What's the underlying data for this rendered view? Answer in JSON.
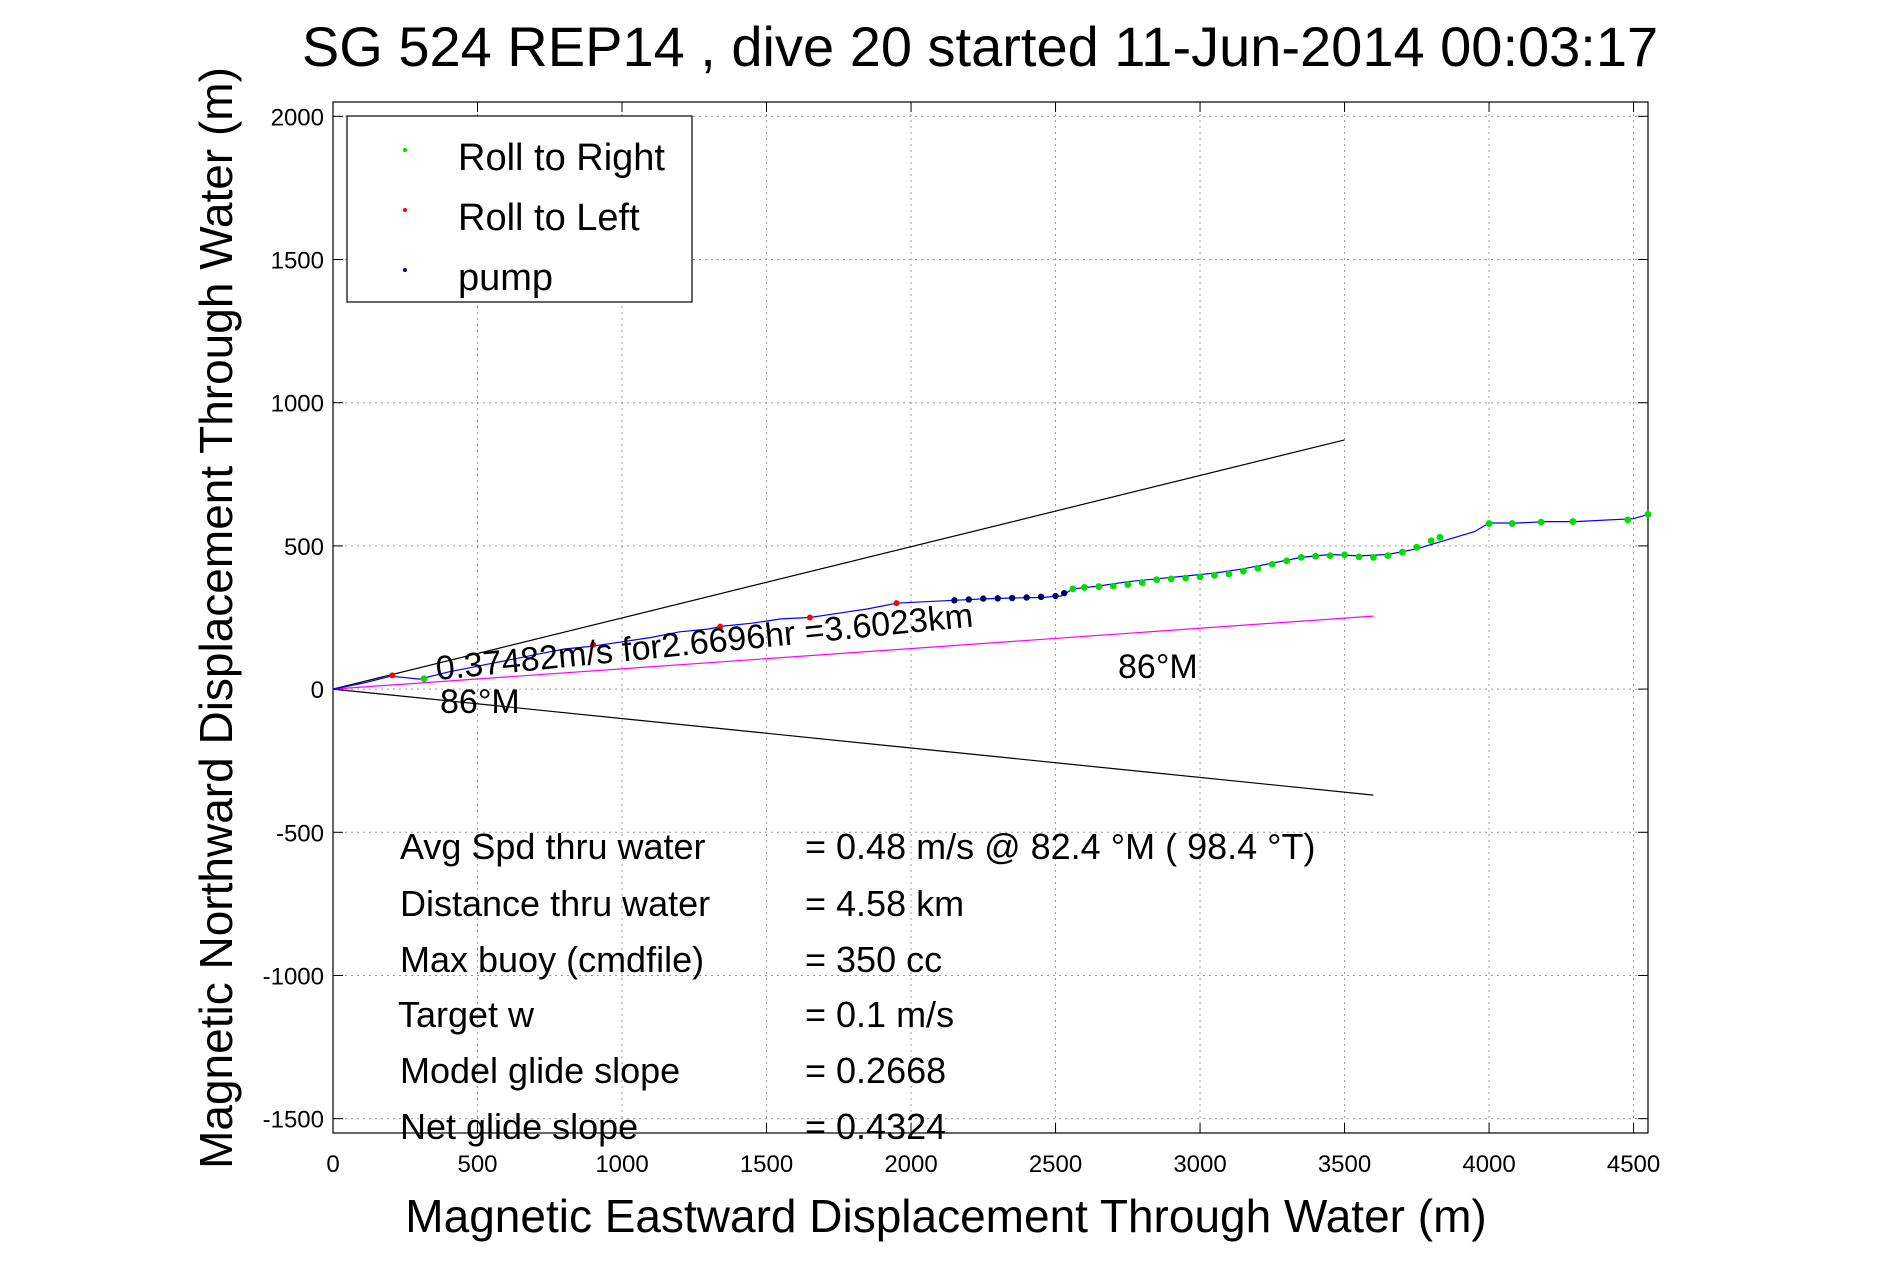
{
  "chart_data": {
    "type": "scatter",
    "title": "SG 524   REP14  , dive 20 started 11-Jun-2014 00:03:17",
    "xlabel": "Magnetic Eastward Displacement Through Water (m)",
    "ylabel": "Magnetic Northward Displacement Through Water (m)",
    "xlim": [
      0,
      4550
    ],
    "ylim": [
      -1550,
      2050
    ],
    "xticks": [
      0,
      500,
      1000,
      1500,
      2000,
      2500,
      3000,
      3500,
      4000,
      4500
    ],
    "yticks": [
      -1500,
      -1000,
      -500,
      0,
      500,
      1000,
      1500,
      2000
    ],
    "grid": true,
    "legend_position": "top-left",
    "legend": [
      "Roll to Right",
      "Roll to Left",
      "pump"
    ],
    "colors": {
      "track": "#0000ff",
      "roll_right": "#00dd00",
      "roll_left": "#ff0000",
      "pump": "#000066",
      "cone": "#000000",
      "heading": "#ff00ff"
    },
    "track": {
      "name": "track",
      "x": [
        0,
        100,
        200,
        300,
        400,
        500,
        600,
        700,
        800,
        900,
        1000,
        1100,
        1200,
        1300,
        1350,
        1450,
        1550,
        1650,
        1750,
        1850,
        1950,
        2050,
        2150,
        2250,
        2350,
        2450,
        2520,
        2560,
        2650,
        2750,
        2850,
        2950,
        3050,
        3150,
        3250,
        3350,
        3450,
        3550,
        3650,
        3750,
        3850,
        3950,
        4000,
        4100,
        4200,
        4300,
        4400,
        4500,
        4550
      ],
      "y": [
        0,
        20,
        45,
        35,
        60,
        80,
        100,
        120,
        140,
        150,
        165,
        180,
        200,
        210,
        220,
        230,
        245,
        250,
        265,
        280,
        300,
        305,
        310,
        315,
        318,
        320,
        325,
        350,
        360,
        375,
        385,
        395,
        405,
        420,
        440,
        460,
        470,
        465,
        470,
        490,
        520,
        550,
        580,
        580,
        585,
        585,
        590,
        595,
        610
      ]
    },
    "roll_right": {
      "name": "Roll to Right",
      "x": [
        315,
        2560,
        2600,
        2650,
        2700,
        2750,
        2800,
        2850,
        2900,
        2950,
        3000,
        3050,
        3100,
        3150,
        3200,
        3250,
        3300,
        3350,
        3400,
        3450,
        3500,
        3550,
        3600,
        3650,
        3700,
        3750,
        3800,
        3830,
        4000,
        4080,
        4180,
        4290,
        4480,
        4550
      ],
      "y": [
        36,
        350,
        355,
        358,
        360,
        365,
        372,
        382,
        385,
        388,
        392,
        397,
        402,
        412,
        422,
        436,
        448,
        460,
        464,
        466,
        469,
        462,
        460,
        466,
        478,
        495,
        518,
        530,
        578,
        578,
        583,
        585,
        591,
        610
      ]
    },
    "roll_left": {
      "name": "Roll to Left",
      "x": [
        205,
        900,
        1340,
        1650,
        1950
      ],
      "y": [
        48,
        155,
        218,
        250,
        300
      ]
    },
    "pump": {
      "name": "pump",
      "x": [
        2150,
        2200,
        2250,
        2300,
        2350,
        2400,
        2450,
        2500,
        2530
      ],
      "y": [
        310,
        313,
        316,
        317,
        318,
        320,
        322,
        325,
        335
      ]
    },
    "cone_upper": {
      "x": [
        0,
        3500
      ],
      "y": [
        0,
        870
      ]
    },
    "cone_lower": {
      "x": [
        0,
        3600
      ],
      "y": [
        0,
        -370
      ]
    },
    "heading_line": {
      "x": [
        0,
        3600
      ],
      "y": [
        0,
        255
      ]
    },
    "annotations": {
      "speed_text": "0.37482m/s for2.6696hr =3.6023km",
      "heading_start": "86°M",
      "heading_end": "86°M"
    },
    "stats": [
      {
        "label": "Avg Spd thru water",
        "value": "=  0.48 m/s @  82.4 °M ( 98.4 °T)"
      },
      {
        "label": "Distance thru water",
        "value": "=  4.58 km"
      },
      {
        "label": "Max buoy (cmdfile)",
        "value": "= 350 cc"
      },
      {
        "label": "Target w",
        "value": "= 0.1 m/s"
      },
      {
        "label": "Model glide slope",
        "value": "= 0.2668"
      },
      {
        "label": "Net glide slope",
        "value": "= 0.4324"
      }
    ]
  }
}
